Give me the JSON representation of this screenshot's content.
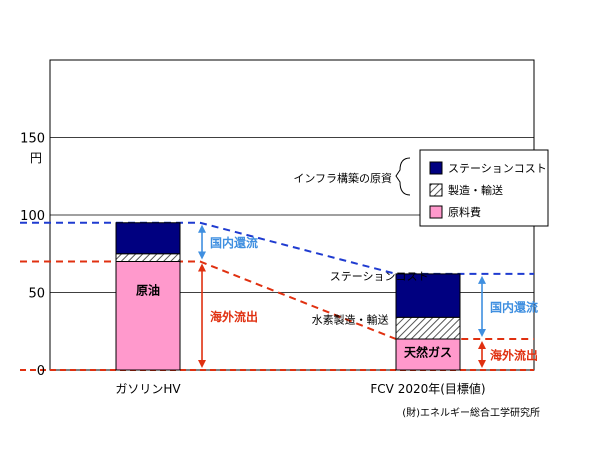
{
  "chart_data": {
    "type": "bar",
    "stacked": true,
    "y_unit": "円",
    "ylim": [
      0,
      200
    ],
    "yticks": [
      0,
      50,
      100,
      150
    ],
    "grid": true,
    "categories": [
      "ガソリンHV",
      "FCV 2020年(目標値)"
    ],
    "series": [
      {
        "name": "原料費",
        "values": [
          70,
          20
        ],
        "color": "#ff99cc"
      },
      {
        "name": "製造・輸送",
        "values": [
          5,
          14
        ],
        "color": "#c8c8c8",
        "pattern": "hatch"
      },
      {
        "name": "ステーションコスト",
        "values": [
          20,
          28
        ],
        "color": "#000080"
      }
    ],
    "bar_labels": [
      {
        "text": "原油",
        "category": 0,
        "y": 52,
        "color": "#000000"
      },
      {
        "text": "天然ガス",
        "category": 1,
        "y": 12,
        "color": "#000000"
      }
    ],
    "inline_labels": [
      {
        "text": "ステーションコスト",
        "x": 0.68,
        "y": 58
      },
      {
        "text": "水素製造・輸送",
        "x": 0.62,
        "y": 30
      }
    ],
    "reference_lines": [
      {
        "from": 95,
        "to": 62,
        "color": "#1f3bd0"
      },
      {
        "from": 70,
        "to": 20,
        "color": "#e03010"
      }
    ],
    "arrows": [
      {
        "text": "国内還流",
        "category": 0,
        "from": 95,
        "to": 70,
        "color": "#3f8fe0",
        "side": "right"
      },
      {
        "text": "海外流出",
        "category": 0,
        "from": 70,
        "to": 0,
        "color": "#e03010",
        "side": "right"
      },
      {
        "text": "国内還流",
        "category": 1,
        "from": 62,
        "to": 20,
        "color": "#3f8fe0",
        "side": "right"
      },
      {
        "text": "海外流出",
        "category": 1,
        "from": 20,
        "to": 0,
        "color": "#e03010",
        "side": "right"
      }
    ],
    "legend": {
      "position": "top-right",
      "group_label": "インフラ構築の原資",
      "entries": [
        "ステーションコスト",
        "製造・輸送",
        "原料費"
      ]
    },
    "source": "(財)エネルギー総合工学研究所"
  }
}
